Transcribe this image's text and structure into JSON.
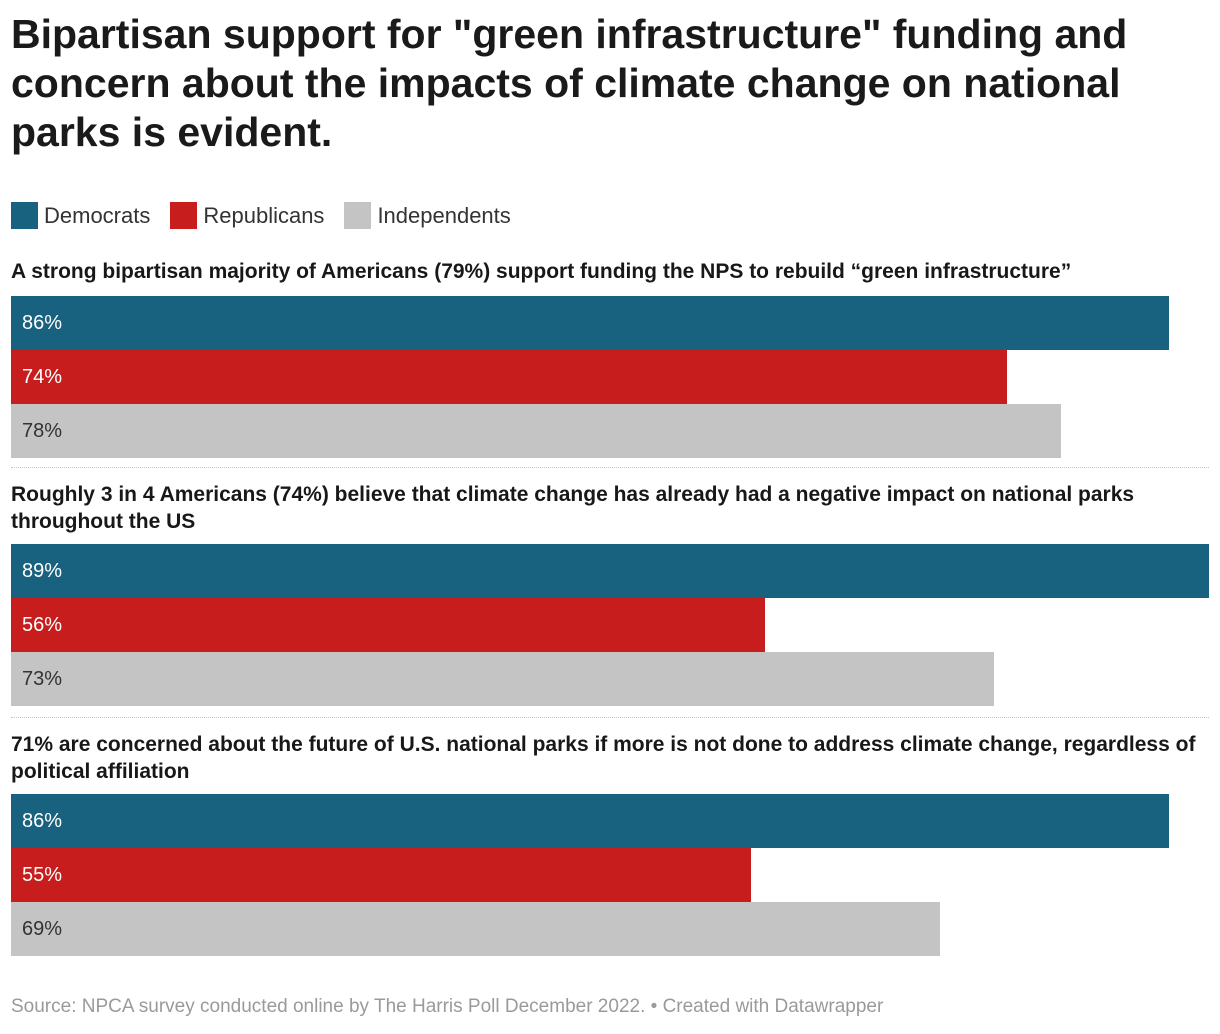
{
  "title": "Bipartisan support for \"green infrastructure\" funding and concern about the impacts of climate change on national parks is evident.",
  "colors": {
    "democrats": "#18627f",
    "republicans": "#c71e1d",
    "independents": "#c4c4c4",
    "label_on_dark": "#ffffff",
    "label_on_light": "#333333"
  },
  "legend": [
    {
      "label": "Democrats",
      "color": "#18627f"
    },
    {
      "label": "Republicans",
      "color": "#c71e1d"
    },
    {
      "label": "Independents",
      "color": "#c4c4c4"
    }
  ],
  "chart_data": {
    "type": "bar",
    "orientation": "horizontal",
    "xlim": [
      0,
      89
    ],
    "unit": "%",
    "series_names": [
      "Democrats",
      "Republicans",
      "Independents"
    ],
    "groups": [
      {
        "title": "A strong bipartisan majority of Americans (79%) support funding the NPS to rebuild “green infrastructure”",
        "values": [
          86,
          74,
          78
        ],
        "labels": [
          "86%",
          "74%",
          "78%"
        ]
      },
      {
        "title": "Roughly 3 in 4 Americans (74%) believe that climate change has already had a negative impact on national parks throughout the US",
        "values": [
          89,
          56,
          73
        ],
        "labels": [
          "89%",
          "56%",
          "73%"
        ]
      },
      {
        "title": "71% are concerned about the future of U.S. national parks if more is not done to address climate change, regardless of political affiliation",
        "values": [
          86,
          55,
          69
        ],
        "labels": [
          "86%",
          "55%",
          "69%"
        ]
      }
    ]
  },
  "footer": "Source: NPCA survey conducted online by The Harris Poll December 2022. • Created with Datawrapper"
}
